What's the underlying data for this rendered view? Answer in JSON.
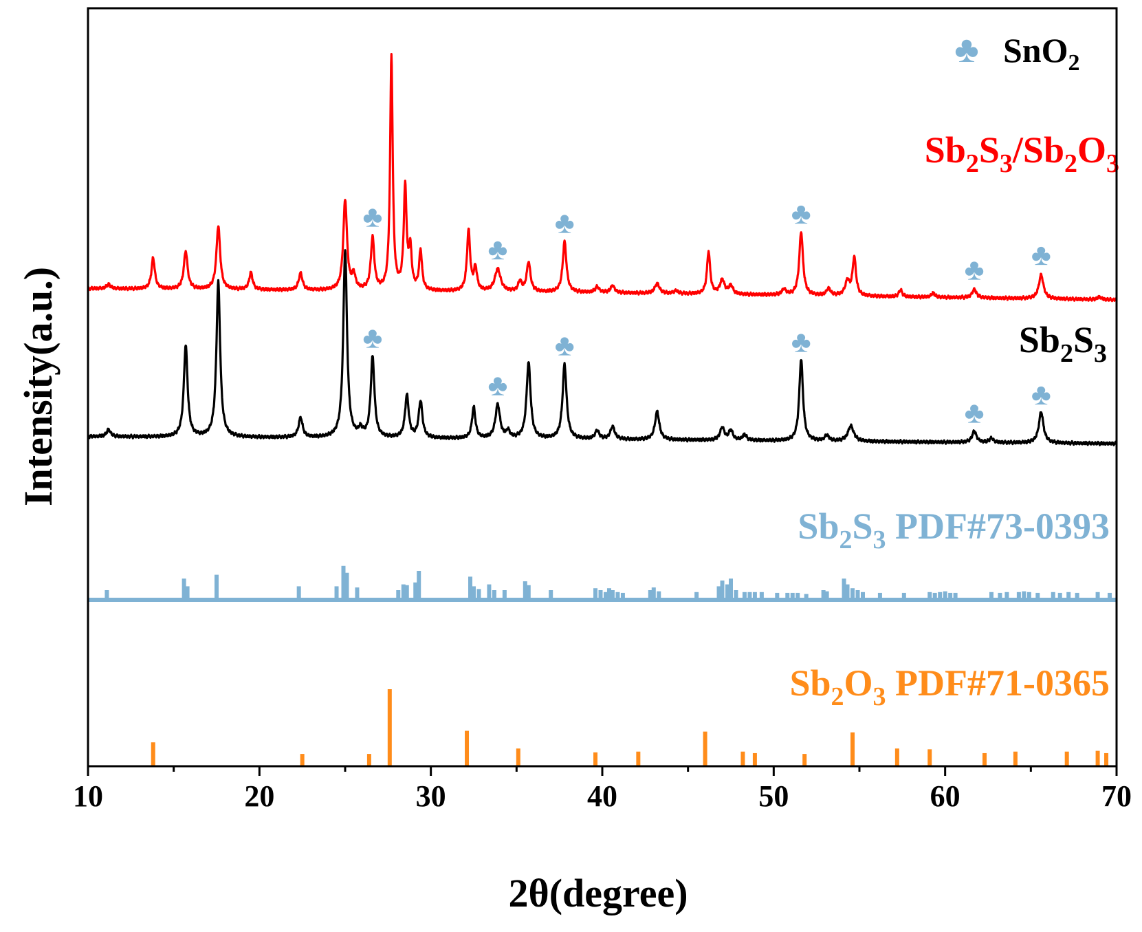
{
  "chart_data": {
    "type": "line",
    "title": "",
    "xlabel": "2θ(degree)",
    "ylabel": "Intensity(a.u.)",
    "xlim": [
      10,
      70
    ],
    "xticks": [
      10,
      20,
      30,
      40,
      50,
      60,
      70
    ],
    "grid": false,
    "legend": {
      "marker": "♣",
      "label_main": "SnO",
      "label_sub": "2",
      "placement": "top-right"
    },
    "colors": {
      "composite": "#ff0000",
      "sb2s3": "#000000",
      "pdf_sb2s3": "#7fb2d4",
      "pdf_sb2o3": "#ff8c1a",
      "sno2_marker": "#7fb2d4"
    },
    "series": [
      {
        "name": "Sb2S3/Sb2O3",
        "label_parts": [
          {
            "t": "Sb"
          },
          {
            "t": "2",
            "sub": true
          },
          {
            "t": "S"
          },
          {
            "t": "3",
            "sub": true
          },
          {
            "t": "/Sb"
          },
          {
            "t": "2",
            "sub": true
          },
          {
            "t": "O"
          },
          {
            "t": "3",
            "sub": true
          }
        ],
        "color": "#ff0000",
        "baseline": [
          [
            10,
            1.1
          ],
          [
            40,
            1.07
          ],
          [
            70,
            1.02
          ]
        ],
        "peaks": [
          [
            11.2,
            0.03,
            0.14
          ],
          [
            13.8,
            0.22,
            0.12
          ],
          [
            15.7,
            0.27,
            0.13
          ],
          [
            17.6,
            0.45,
            0.13
          ],
          [
            19.5,
            0.12,
            0.12
          ],
          [
            22.4,
            0.12,
            0.13
          ],
          [
            25.0,
            0.64,
            0.13
          ],
          [
            25.5,
            0.1,
            0.12
          ],
          [
            26.6,
            0.37,
            0.12
          ],
          [
            27.7,
            1.66,
            0.09
          ],
          [
            28.5,
            0.72,
            0.1
          ],
          [
            28.8,
            0.28,
            0.1
          ],
          [
            29.4,
            0.28,
            0.1
          ],
          [
            32.2,
            0.43,
            0.11
          ],
          [
            32.6,
            0.16,
            0.11
          ],
          [
            33.9,
            0.16,
            0.2
          ],
          [
            35.2,
            0.07,
            0.12
          ],
          [
            35.7,
            0.21,
            0.13
          ],
          [
            37.8,
            0.36,
            0.13
          ],
          [
            39.7,
            0.04,
            0.14
          ],
          [
            40.6,
            0.05,
            0.14
          ],
          [
            43.2,
            0.07,
            0.16
          ],
          [
            44.3,
            0.02,
            0.14
          ],
          [
            46.2,
            0.3,
            0.11
          ],
          [
            47.0,
            0.1,
            0.16
          ],
          [
            47.5,
            0.06,
            0.14
          ],
          [
            50.6,
            0.04,
            0.14
          ],
          [
            51.6,
            0.45,
            0.13
          ],
          [
            53.2,
            0.05,
            0.14
          ],
          [
            54.3,
            0.1,
            0.16
          ],
          [
            54.7,
            0.27,
            0.12
          ],
          [
            57.4,
            0.05,
            0.11
          ],
          [
            59.3,
            0.03,
            0.12
          ],
          [
            61.7,
            0.06,
            0.15
          ],
          [
            65.6,
            0.17,
            0.16
          ],
          [
            69.0,
            0.02,
            0.12
          ]
        ]
      },
      {
        "name": "Sb2S3",
        "label_parts": [
          {
            "t": "Sb"
          },
          {
            "t": "2",
            "sub": true
          },
          {
            "t": "S"
          },
          {
            "t": "3",
            "sub": true
          }
        ],
        "color": "#000000",
        "baseline": [
          [
            10,
            0.05
          ],
          [
            40,
            0.03
          ],
          [
            70,
            0.0
          ]
        ],
        "peaks": [
          [
            11.2,
            0.05,
            0.14
          ],
          [
            15.7,
            0.65,
            0.13
          ],
          [
            17.6,
            1.1,
            0.13
          ],
          [
            22.4,
            0.14,
            0.14
          ],
          [
            25.0,
            1.33,
            0.13
          ],
          [
            25.9,
            0.05,
            0.14
          ],
          [
            26.6,
            0.57,
            0.13
          ],
          [
            28.6,
            0.3,
            0.13
          ],
          [
            29.4,
            0.26,
            0.13
          ],
          [
            32.5,
            0.22,
            0.12
          ],
          [
            33.9,
            0.24,
            0.16
          ],
          [
            34.5,
            0.05,
            0.12
          ],
          [
            35.7,
            0.54,
            0.14
          ],
          [
            37.8,
            0.53,
            0.14
          ],
          [
            39.7,
            0.06,
            0.14
          ],
          [
            40.6,
            0.09,
            0.15
          ],
          [
            43.2,
            0.2,
            0.15
          ],
          [
            47.0,
            0.09,
            0.15
          ],
          [
            47.5,
            0.07,
            0.14
          ],
          [
            48.3,
            0.04,
            0.14
          ],
          [
            51.6,
            0.58,
            0.13
          ],
          [
            53.1,
            0.04,
            0.14
          ],
          [
            54.5,
            0.11,
            0.2
          ],
          [
            61.7,
            0.08,
            0.15
          ],
          [
            62.7,
            0.03,
            0.14
          ],
          [
            65.6,
            0.22,
            0.16
          ]
        ]
      }
    ],
    "sno2_markers": {
      "composite": [
        26.6,
        33.9,
        37.8,
        51.6,
        61.7,
        65.6
      ],
      "sb2s3": [
        26.6,
        33.9,
        37.8,
        51.6,
        61.7,
        65.6
      ]
    },
    "reference_patterns": [
      {
        "name": "Sb2S3 PDF#73-0393",
        "label_parts": [
          {
            "t": "Sb"
          },
          {
            "t": "2",
            "sub": true
          },
          {
            "t": "S"
          },
          {
            "t": "3",
            "sub": true
          },
          {
            "t": " PDF#73-0393"
          }
        ],
        "color": "#7fb2d4",
        "lines": [
          [
            11.1,
            0.25
          ],
          [
            15.6,
            0.55
          ],
          [
            15.8,
            0.35
          ],
          [
            17.5,
            0.65
          ],
          [
            22.3,
            0.35
          ],
          [
            24.5,
            0.35
          ],
          [
            24.9,
            0.88
          ],
          [
            25.1,
            0.7
          ],
          [
            25.7,
            0.32
          ],
          [
            28.1,
            0.25
          ],
          [
            28.4,
            0.4
          ],
          [
            28.6,
            0.38
          ],
          [
            29.1,
            0.45
          ],
          [
            29.3,
            0.75
          ],
          [
            32.3,
            0.6
          ],
          [
            32.5,
            0.35
          ],
          [
            32.8,
            0.28
          ],
          [
            33.4,
            0.4
          ],
          [
            33.7,
            0.25
          ],
          [
            34.3,
            0.25
          ],
          [
            35.5,
            0.48
          ],
          [
            35.7,
            0.38
          ],
          [
            37.0,
            0.25
          ],
          [
            39.6,
            0.3
          ],
          [
            39.9,
            0.25
          ],
          [
            40.2,
            0.2
          ],
          [
            40.4,
            0.3
          ],
          [
            40.6,
            0.25
          ],
          [
            40.9,
            0.2
          ],
          [
            41.2,
            0.18
          ],
          [
            42.8,
            0.25
          ],
          [
            43.0,
            0.32
          ],
          [
            43.3,
            0.22
          ],
          [
            45.5,
            0.2
          ],
          [
            46.8,
            0.35
          ],
          [
            47.0,
            0.5
          ],
          [
            47.3,
            0.4
          ],
          [
            47.5,
            0.55
          ],
          [
            47.8,
            0.25
          ],
          [
            48.3,
            0.2
          ],
          [
            48.6,
            0.2
          ],
          [
            48.9,
            0.2
          ],
          [
            49.3,
            0.2
          ],
          [
            50.2,
            0.18
          ],
          [
            50.8,
            0.18
          ],
          [
            51.1,
            0.18
          ],
          [
            51.4,
            0.18
          ],
          [
            51.9,
            0.15
          ],
          [
            52.9,
            0.25
          ],
          [
            53.1,
            0.22
          ],
          [
            54.1,
            0.55
          ],
          [
            54.3,
            0.4
          ],
          [
            54.6,
            0.3
          ],
          [
            54.9,
            0.25
          ],
          [
            55.2,
            0.2
          ],
          [
            56.2,
            0.18
          ],
          [
            57.6,
            0.18
          ],
          [
            59.1,
            0.2
          ],
          [
            59.4,
            0.18
          ],
          [
            59.7,
            0.2
          ],
          [
            60.0,
            0.22
          ],
          [
            60.3,
            0.18
          ],
          [
            60.6,
            0.18
          ],
          [
            62.7,
            0.2
          ],
          [
            63.2,
            0.18
          ],
          [
            63.6,
            0.2
          ],
          [
            64.3,
            0.2
          ],
          [
            64.6,
            0.22
          ],
          [
            64.9,
            0.2
          ],
          [
            65.4,
            0.18
          ],
          [
            66.3,
            0.2
          ],
          [
            66.7,
            0.18
          ],
          [
            67.2,
            0.2
          ],
          [
            67.7,
            0.18
          ],
          [
            68.9,
            0.2
          ],
          [
            69.6,
            0.18
          ]
        ]
      },
      {
        "name": "Sb2O3 PDF#71-0365",
        "label_parts": [
          {
            "t": "Sb"
          },
          {
            "t": "2",
            "sub": true
          },
          {
            "t": "O"
          },
          {
            "t": "3",
            "sub": true
          },
          {
            "t": " PDF#71-0365"
          }
        ],
        "color": "#ff8c1a",
        "lines": [
          [
            13.8,
            0.31
          ],
          [
            22.5,
            0.16
          ],
          [
            26.4,
            0.16
          ],
          [
            27.6,
            1.0
          ],
          [
            32.1,
            0.46
          ],
          [
            35.1,
            0.23
          ],
          [
            39.6,
            0.18
          ],
          [
            42.1,
            0.19
          ],
          [
            46.0,
            0.45
          ],
          [
            48.2,
            0.19
          ],
          [
            48.9,
            0.17
          ],
          [
            51.8,
            0.16
          ],
          [
            54.6,
            0.44
          ],
          [
            57.2,
            0.23
          ],
          [
            59.1,
            0.22
          ],
          [
            62.3,
            0.17
          ],
          [
            64.1,
            0.19
          ],
          [
            67.1,
            0.19
          ],
          [
            68.9,
            0.2
          ],
          [
            69.4,
            0.17
          ]
        ]
      }
    ]
  }
}
